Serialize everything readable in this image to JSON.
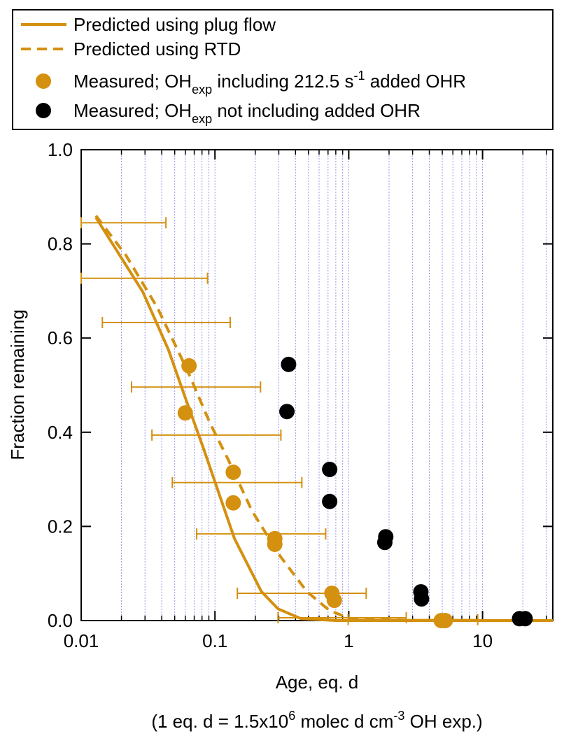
{
  "chart_data": {
    "type": "scatter",
    "x_label": "Age, eq. d",
    "x_note": [
      {
        "text": "(1 eq. d = 1.5x10"
      },
      {
        "text": "6",
        "sup": true
      },
      {
        "text": " molec d cm"
      },
      {
        "text": "-3",
        "sup": true
      },
      {
        "text": " OH exp.)"
      }
    ],
    "y_label": "Fraction remaining",
    "x_log": true,
    "xlim": [
      0.01,
      33.5
    ],
    "ylim": [
      0,
      1
    ],
    "xticks": [
      0.01,
      0.1,
      1,
      10
    ],
    "x_minor_ticks": [
      0.02,
      0.03,
      0.04,
      0.05,
      0.06,
      0.07,
      0.08,
      0.09,
      0.2,
      0.3,
      0.4,
      0.5,
      0.6,
      0.7,
      0.8,
      0.9,
      2,
      3,
      4,
      5,
      6,
      7,
      8,
      9,
      20,
      30
    ],
    "yticks": [
      {
        "value": 0,
        "label": "0.0"
      },
      0.2,
      0.4,
      0.6,
      0.8,
      {
        "value": 1,
        "label": "1.0"
      }
    ],
    "grid": true,
    "grid_color": "#9999ee",
    "legend": "top",
    "series": [
      {
        "name": [
          {
            "text": "Predicted using plug flow"
          }
        ],
        "style": "line",
        "color": "#d4900f",
        "x": [
          0.0129,
          0.0289,
          0.0448,
          0.0589,
          0.0815,
          0.14,
          0.222,
          0.296,
          0.44,
          0.8,
          33.5
        ],
        "values": [
          0.856,
          0.698,
          0.576,
          0.48,
          0.368,
          0.174,
          0.062,
          0.025,
          0.004,
          0,
          0
        ]
      },
      {
        "name": [
          {
            "text": "Predicted using RTD"
          }
        ],
        "style": "dashed",
        "color": "#d4900f",
        "x": [
          0.0129,
          0.0216,
          0.0372,
          0.0625,
          0.0919,
          0.124,
          0.189,
          0.307,
          0.485,
          0.713,
          1.02,
          3.42,
          33.5
        ],
        "values": [
          0.86,
          0.776,
          0.664,
          0.53,
          0.419,
          0.345,
          0.233,
          0.137,
          0.062,
          0.022,
          0.004,
          0,
          0
        ]
      },
      {
        "name": [
          {
            "text": "Measured; OH"
          },
          {
            "text": "exp",
            "sub": true
          },
          {
            "text": " including 212.5 s"
          },
          {
            "text": "-1",
            "sup": true
          },
          {
            "text": " added OHR"
          }
        ],
        "style": "markers",
        "color": "#d4900f",
        "x": [
          0.064,
          0.06,
          0.137,
          0.137,
          0.28,
          0.28,
          0.748,
          0.78,
          4.91,
          5.26
        ],
        "values": [
          0.541,
          0.441,
          0.315,
          0.25,
          0.174,
          0.162,
          0.058,
          0.043,
          0,
          0
        ]
      },
      {
        "name": [
          {
            "text": "Measured; OH"
          },
          {
            "text": "exp",
            "sub": true
          },
          {
            "text": " not including added OHR"
          }
        ],
        "style": "markers",
        "color": "#000000",
        "x": [
          0.355,
          0.345,
          0.72,
          0.72,
          1.89,
          1.86,
          3.46,
          3.5,
          18.9,
          20.8
        ],
        "values": [
          0.544,
          0.444,
          0.321,
          0.253,
          0.178,
          0.166,
          0.061,
          0.046,
          0.004,
          0.004
        ]
      },
      {
        "style": "xerror",
        "color": "#d4900f",
        "values": [
          0.845,
          0.727,
          0.633,
          0.496,
          0.394,
          0.293,
          0.184,
          0.058,
          0.006,
          0.002
        ],
        "x_low": [
          0.01,
          0.01,
          0.0144,
          0.0238,
          0.0338,
          0.048,
          0.073,
          0.147,
          0.296,
          0.99
        ],
        "x_high": [
          0.043,
          0.088,
          0.13,
          0.219,
          0.311,
          0.446,
          0.672,
          1.35,
          2.69,
          9.2
        ]
      }
    ]
  }
}
